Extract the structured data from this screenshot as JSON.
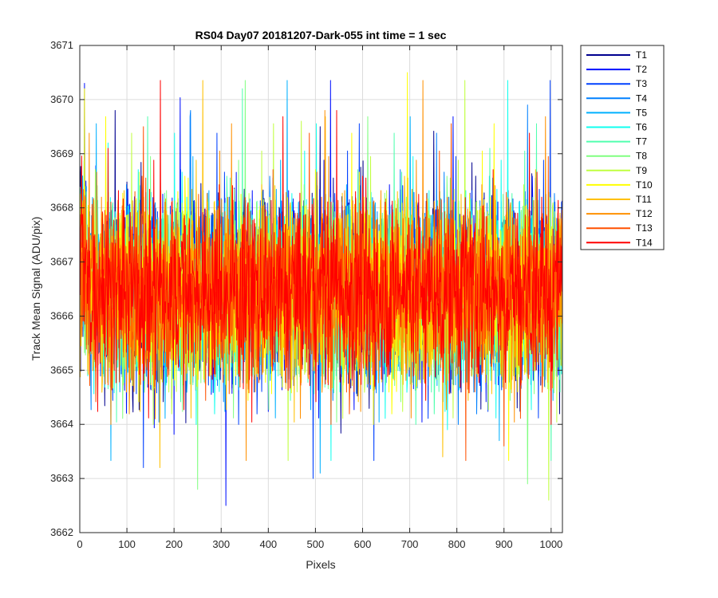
{
  "chart_data": {
    "type": "line",
    "title": "RS04 Day07 20181207-Dark-055 int time = 1 sec",
    "xlabel": "Pixels",
    "ylabel": "Track Mean Signal (ADU/pix)",
    "xlim": [
      0,
      1024
    ],
    "ylim": [
      3662,
      3671
    ],
    "xticks": [
      0,
      100,
      200,
      300,
      400,
      500,
      600,
      700,
      800,
      900,
      1000
    ],
    "yticks": [
      3662,
      3663,
      3664,
      3665,
      3666,
      3667,
      3668,
      3669,
      3670,
      3671
    ],
    "grid": true,
    "legend_position": "outside-top-right",
    "mean_level": 3666.5,
    "series": [
      {
        "name": "T1",
        "color": "#00008f",
        "spike_x": [
          75,
          510
        ],
        "spike_y": [
          3669.8,
          3669.5
        ]
      },
      {
        "name": "T2",
        "color": "#0010ff",
        "spike_x": [
          10,
          310
        ],
        "spike_y": [
          3670.3,
          3662.5
        ]
      },
      {
        "name": "T3",
        "color": "#0040ff",
        "spike_x": [
          135,
          495
        ],
        "spike_y": [
          3663.2,
          3663.0
        ]
      },
      {
        "name": "T4",
        "color": "#0080ff",
        "spike_x": [
          235,
          950
        ],
        "spike_y": [
          3669.8,
          3669.9
        ]
      },
      {
        "name": "T5",
        "color": "#00b0ff",
        "spike_x": [
          510,
          890
        ],
        "spike_y": [
          3663.1,
          3663.7
        ]
      },
      {
        "name": "T6",
        "color": "#10ffef",
        "spike_x": [
          60,
          780
        ],
        "spike_y": [
          3669.2,
          3663.9
        ]
      },
      {
        "name": "T7",
        "color": "#50ffaf",
        "spike_x": [
          345,
          870
        ],
        "spike_y": [
          3670.2,
          3669.1
        ]
      },
      {
        "name": "T8",
        "color": "#80ff80",
        "spike_x": [
          250,
          950
        ],
        "spike_y": [
          3662.8,
          3662.9
        ]
      },
      {
        "name": "T9",
        "color": "#c0ff40",
        "spike_x": [
          470,
          995
        ],
        "spike_y": [
          3669.6,
          3662.6
        ]
      },
      {
        "name": "T10",
        "color": "#ffff00",
        "spike_x": [
          10,
          695
        ],
        "spike_y": [
          3670.2,
          3670.5
        ]
      },
      {
        "name": "T11",
        "color": "#ffc000",
        "spike_x": [
          170,
          770
        ],
        "spike_y": [
          3663.2,
          3663.4
        ]
      },
      {
        "name": "T12",
        "color": "#ff9000",
        "spike_x": [
          160,
          520
        ],
        "spike_y": [
          3664.1,
          3669.8
        ]
      },
      {
        "name": "T13",
        "color": "#ff5000",
        "spike_x": [
          135,
          900
        ],
        "spike_y": [
          3669.5,
          3663.6
        ]
      },
      {
        "name": "T14",
        "color": "#ff0000",
        "spike_x": [
          60,
          545
        ],
        "spike_y": [
          3669.1,
          3669.8
        ]
      }
    ]
  }
}
